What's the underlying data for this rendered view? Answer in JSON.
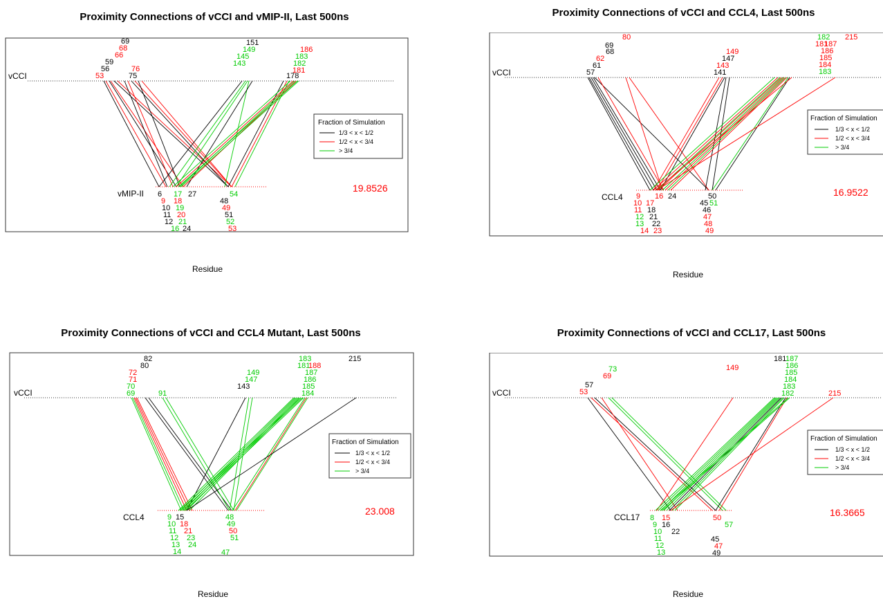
{
  "colors": {
    "black": "#000000",
    "red": "#ff0000",
    "green": "#00cc00"
  },
  "chart_data": [
    {
      "type": "network",
      "title": "Proximity Connections of vCCI and vMIP-II, Last 500ns",
      "xlabel": "Residue",
      "top_label": "vCCI",
      "bottom_label": "vMIP-II",
      "value": "19.8526",
      "legend": {
        "title": "Fraction of Simulation",
        "entries": [
          "1/3 < x < 1/2",
          "1/2 < x < 3/4",
          "> 3/4"
        ]
      },
      "top_residues": [
        {
          "id": "69",
          "c": "black"
        },
        {
          "id": "68",
          "c": "red"
        },
        {
          "id": "66",
          "c": "red"
        },
        {
          "id": "59",
          "c": "black"
        },
        {
          "id": "56",
          "c": "black"
        },
        {
          "id": "53",
          "c": "red"
        },
        {
          "id": "76",
          "c": "red"
        },
        {
          "id": "75",
          "c": "black"
        },
        {
          "id": "151",
          "c": "black"
        },
        {
          "id": "149",
          "c": "green"
        },
        {
          "id": "145",
          "c": "green"
        },
        {
          "id": "143",
          "c": "green"
        },
        {
          "id": "186",
          "c": "red"
        },
        {
          "id": "183",
          "c": "green"
        },
        {
          "id": "182",
          "c": "green"
        },
        {
          "id": "181",
          "c": "red"
        },
        {
          "id": "178",
          "c": "black"
        }
      ],
      "bottom_residues": [
        {
          "id": "6",
          "c": "black"
        },
        {
          "id": "9",
          "c": "red"
        },
        {
          "id": "10",
          "c": "black"
        },
        {
          "id": "11",
          "c": "black"
        },
        {
          "id": "12",
          "c": "black"
        },
        {
          "id": "16",
          "c": "green"
        },
        {
          "id": "17",
          "c": "green"
        },
        {
          "id": "18",
          "c": "red"
        },
        {
          "id": "19",
          "c": "green"
        },
        {
          "id": "20",
          "c": "red"
        },
        {
          "id": "21",
          "c": "green"
        },
        {
          "id": "24",
          "c": "black"
        },
        {
          "id": "27",
          "c": "black"
        },
        {
          "id": "54",
          "c": "green"
        },
        {
          "id": "48",
          "c": "black"
        },
        {
          "id": "49",
          "c": "red"
        },
        {
          "id": "51",
          "c": "black"
        },
        {
          "id": "52",
          "c": "green"
        },
        {
          "id": "53",
          "c": "red"
        }
      ]
    },
    {
      "type": "network",
      "title": "Proximity Connections of vCCI and CCL4, Last 500ns",
      "xlabel": "Residue",
      "top_label": "vCCI",
      "bottom_label": "CCL4",
      "value": "16.9522",
      "legend": {
        "title": "Fraction of Simulation",
        "entries": [
          "1/3 < x < 1/2",
          "1/2 < x < 3/4",
          "> 3/4"
        ]
      },
      "top_residues": [
        {
          "id": "80",
          "c": "red"
        },
        {
          "id": "69",
          "c": "black"
        },
        {
          "id": "68",
          "c": "black"
        },
        {
          "id": "62",
          "c": "red"
        },
        {
          "id": "61",
          "c": "black"
        },
        {
          "id": "57",
          "c": "black"
        },
        {
          "id": "149",
          "c": "red"
        },
        {
          "id": "147",
          "c": "black"
        },
        {
          "id": "143",
          "c": "red"
        },
        {
          "id": "141",
          "c": "black"
        },
        {
          "id": "182",
          "c": "green"
        },
        {
          "id": "181",
          "c": "red"
        },
        {
          "id": "187",
          "c": "red"
        },
        {
          "id": "186",
          "c": "red"
        },
        {
          "id": "185",
          "c": "red"
        },
        {
          "id": "184",
          "c": "red"
        },
        {
          "id": "183",
          "c": "green"
        },
        {
          "id": "215",
          "c": "red"
        }
      ],
      "bottom_residues": [
        {
          "id": "9",
          "c": "red"
        },
        {
          "id": "16",
          "c": "red"
        },
        {
          "id": "24",
          "c": "black"
        },
        {
          "id": "10",
          "c": "red"
        },
        {
          "id": "17",
          "c": "red"
        },
        {
          "id": "11",
          "c": "red"
        },
        {
          "id": "18",
          "c": "black"
        },
        {
          "id": "12",
          "c": "green"
        },
        {
          "id": "21",
          "c": "black"
        },
        {
          "id": "13",
          "c": "green"
        },
        {
          "id": "22",
          "c": "black"
        },
        {
          "id": "14",
          "c": "red"
        },
        {
          "id": "23",
          "c": "red"
        },
        {
          "id": "50",
          "c": "black"
        },
        {
          "id": "45",
          "c": "black"
        },
        {
          "id": "51",
          "c": "green"
        },
        {
          "id": "46",
          "c": "black"
        },
        {
          "id": "47",
          "c": "red"
        },
        {
          "id": "48",
          "c": "red"
        },
        {
          "id": "49",
          "c": "red"
        }
      ]
    },
    {
      "type": "network",
      "title": "Proximity Connections of vCCI and CCL4 Mutant, Last 500ns",
      "xlabel": "Residue",
      "top_label": "vCCI",
      "bottom_label": "CCL4",
      "value": "23.008",
      "legend": {
        "title": "Fraction of Simulation",
        "entries": [
          "1/3 < x < 1/2",
          "1/2 < x < 3/4",
          "> 3/4"
        ]
      },
      "top_residues": [
        {
          "id": "82",
          "c": "black"
        },
        {
          "id": "80",
          "c": "black"
        },
        {
          "id": "72",
          "c": "red"
        },
        {
          "id": "71",
          "c": "red"
        },
        {
          "id": "70",
          "c": "green"
        },
        {
          "id": "69",
          "c": "green"
        },
        {
          "id": "91",
          "c": "green"
        },
        {
          "id": "149",
          "c": "green"
        },
        {
          "id": "147",
          "c": "green"
        },
        {
          "id": "143",
          "c": "black"
        },
        {
          "id": "183",
          "c": "green"
        },
        {
          "id": "181",
          "c": "green"
        },
        {
          "id": "188",
          "c": "red"
        },
        {
          "id": "187",
          "c": "green"
        },
        {
          "id": "186",
          "c": "green"
        },
        {
          "id": "185",
          "c": "green"
        },
        {
          "id": "184",
          "c": "green"
        },
        {
          "id": "215",
          "c": "black"
        }
      ],
      "bottom_residues": [
        {
          "id": "9",
          "c": "green"
        },
        {
          "id": "15",
          "c": "black"
        },
        {
          "id": "10",
          "c": "green"
        },
        {
          "id": "18",
          "c": "red"
        },
        {
          "id": "11",
          "c": "green"
        },
        {
          "id": "21",
          "c": "red"
        },
        {
          "id": "12",
          "c": "green"
        },
        {
          "id": "23",
          "c": "green"
        },
        {
          "id": "13",
          "c": "green"
        },
        {
          "id": "24",
          "c": "green"
        },
        {
          "id": "14",
          "c": "green"
        },
        {
          "id": "48",
          "c": "green"
        },
        {
          "id": "49",
          "c": "green"
        },
        {
          "id": "50",
          "c": "red"
        },
        {
          "id": "51",
          "c": "green"
        },
        {
          "id": "47",
          "c": "green"
        }
      ]
    },
    {
      "type": "network",
      "title": "Proximity Connections of vCCI and CCL17, Last 500ns",
      "xlabel": "Residue",
      "top_label": "vCCI",
      "bottom_label": "CCL17",
      "value": "16.3665",
      "legend": {
        "title": "Fraction of Simulation",
        "entries": [
          "1/3 < x < 1/2",
          "1/2 < x < 3/4",
          "> 3/4"
        ]
      },
      "top_residues": [
        {
          "id": "73",
          "c": "green"
        },
        {
          "id": "69",
          "c": "red"
        },
        {
          "id": "57",
          "c": "black"
        },
        {
          "id": "53",
          "c": "red"
        },
        {
          "id": "149",
          "c": "red"
        },
        {
          "id": "181",
          "c": "black"
        },
        {
          "id": "187",
          "c": "green"
        },
        {
          "id": "186",
          "c": "green"
        },
        {
          "id": "185",
          "c": "green"
        },
        {
          "id": "184",
          "c": "green"
        },
        {
          "id": "183",
          "c": "green"
        },
        {
          "id": "182",
          "c": "green"
        },
        {
          "id": "215",
          "c": "red"
        }
      ],
      "bottom_residues": [
        {
          "id": "8",
          "c": "green"
        },
        {
          "id": "15",
          "c": "red"
        },
        {
          "id": "9",
          "c": "green"
        },
        {
          "id": "16",
          "c": "black"
        },
        {
          "id": "10",
          "c": "green"
        },
        {
          "id": "22",
          "c": "black"
        },
        {
          "id": "11",
          "c": "green"
        },
        {
          "id": "12",
          "c": "green"
        },
        {
          "id": "13",
          "c": "green"
        },
        {
          "id": "50",
          "c": "red"
        },
        {
          "id": "57",
          "c": "green"
        },
        {
          "id": "45",
          "c": "black"
        },
        {
          "id": "47",
          "c": "red"
        },
        {
          "id": "49",
          "c": "black"
        }
      ]
    }
  ]
}
